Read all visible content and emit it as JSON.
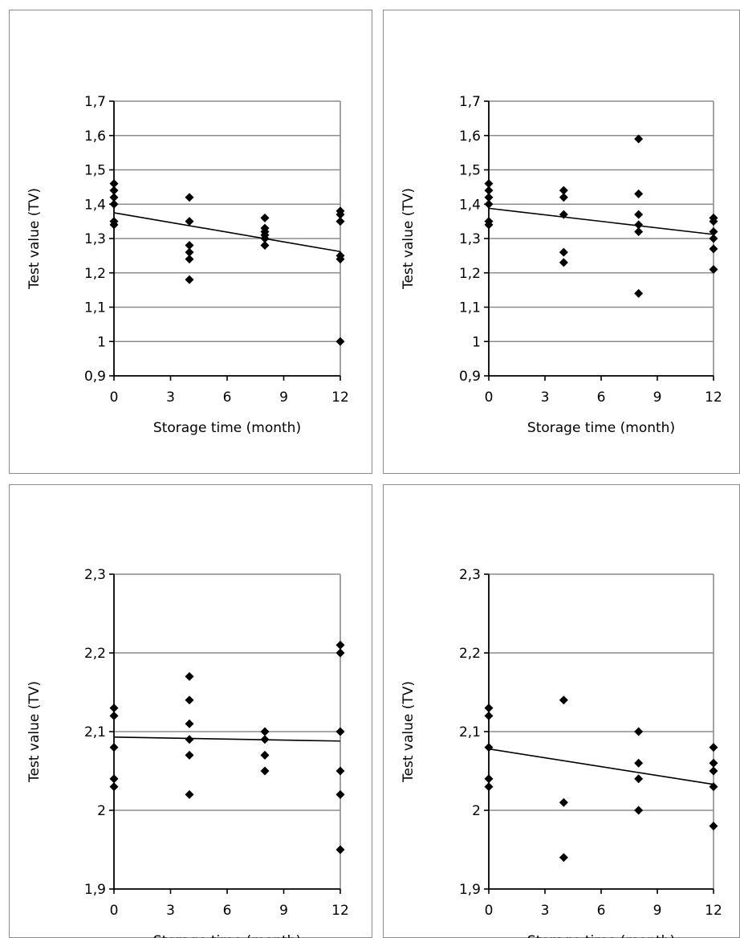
{
  "chart_data": [
    {
      "type": "scatter",
      "xlabel": "Storage time (month)",
      "ylabel": "Test value (TV)",
      "xlim": [
        0,
        12
      ],
      "ylim": [
        0.9,
        1.7
      ],
      "xticks": [
        "0",
        "3",
        "6",
        "9",
        "12"
      ],
      "yticks": [
        "0,9",
        "1",
        "1,1",
        "1,2",
        "1,3",
        "1,4",
        "1,5",
        "1,6",
        "1,7"
      ],
      "grid": "horizontal",
      "series": [
        {
          "points": [
            [
              0,
              1.46
            ],
            [
              0,
              1.44
            ],
            [
              0,
              1.42
            ],
            [
              0,
              1.4
            ],
            [
              0,
              1.35
            ],
            [
              0,
              1.34
            ],
            [
              4,
              1.42
            ],
            [
              4,
              1.35
            ],
            [
              4,
              1.28
            ],
            [
              4,
              1.26
            ],
            [
              4,
              1.24
            ],
            [
              4,
              1.18
            ],
            [
              8,
              1.36
            ],
            [
              8,
              1.33
            ],
            [
              8,
              1.32
            ],
            [
              8,
              1.31
            ],
            [
              8,
              1.3
            ],
            [
              8,
              1.28
            ],
            [
              12,
              1.38
            ],
            [
              12,
              1.37
            ],
            [
              12,
              1.35
            ],
            [
              12,
              1.25
            ],
            [
              12,
              1.24
            ],
            [
              12,
              1.0
            ]
          ]
        }
      ],
      "trendline": {
        "x": [
          0,
          12
        ],
        "y": [
          1.375,
          1.262
        ]
      }
    },
    {
      "type": "scatter",
      "xlabel": "Storage time (month)",
      "ylabel": "Test value (TV)",
      "xlim": [
        0,
        12
      ],
      "ylim": [
        0.9,
        1.7
      ],
      "xticks": [
        "0",
        "3",
        "6",
        "9",
        "12"
      ],
      "yticks": [
        "0,9",
        "1",
        "1,1",
        "1,2",
        "1,3",
        "1,4",
        "1,5",
        "1,6",
        "1,7"
      ],
      "grid": "horizontal",
      "series": [
        {
          "points": [
            [
              0,
              1.46
            ],
            [
              0,
              1.44
            ],
            [
              0,
              1.42
            ],
            [
              0,
              1.4
            ],
            [
              0,
              1.35
            ],
            [
              0,
              1.34
            ],
            [
              4,
              1.44
            ],
            [
              4,
              1.42
            ],
            [
              4,
              1.37
            ],
            [
              4,
              1.26
            ],
            [
              4,
              1.23
            ],
            [
              8,
              1.59
            ],
            [
              8,
              1.43
            ],
            [
              8,
              1.37
            ],
            [
              8,
              1.34
            ],
            [
              8,
              1.32
            ],
            [
              8,
              1.14
            ],
            [
              12,
              1.36
            ],
            [
              12,
              1.35
            ],
            [
              12,
              1.32
            ],
            [
              12,
              1.3
            ],
            [
              12,
              1.27
            ],
            [
              12,
              1.21
            ]
          ]
        }
      ],
      "trendline": {
        "x": [
          0,
          12
        ],
        "y": [
          1.388,
          1.312
        ]
      }
    },
    {
      "type": "scatter",
      "xlabel": "Storage time (month)",
      "ylabel": "Test value (TV)",
      "xlim": [
        0,
        12
      ],
      "ylim": [
        1.9,
        2.3
      ],
      "xticks": [
        "0",
        "3",
        "6",
        "9",
        "12"
      ],
      "yticks": [
        "1,9",
        "2",
        "2,1",
        "2,2",
        "2,3"
      ],
      "grid": "horizontal",
      "series": [
        {
          "points": [
            [
              0,
              2.13
            ],
            [
              0,
              2.12
            ],
            [
              0,
              2.08
            ],
            [
              0,
              2.04
            ],
            [
              0,
              2.03
            ],
            [
              4,
              2.17
            ],
            [
              4,
              2.14
            ],
            [
              4,
              2.11
            ],
            [
              4,
              2.09
            ],
            [
              4,
              2.07
            ],
            [
              4,
              2.02
            ],
            [
              8,
              2.1
            ],
            [
              8,
              2.09
            ],
            [
              8,
              2.07
            ],
            [
              8,
              2.05
            ],
            [
              12,
              2.21
            ],
            [
              12,
              2.2
            ],
            [
              12,
              2.1
            ],
            [
              12,
              2.05
            ],
            [
              12,
              2.02
            ],
            [
              12,
              1.95
            ]
          ]
        }
      ],
      "trendline": {
        "x": [
          0,
          12
        ],
        "y": [
          2.093,
          2.088
        ]
      }
    },
    {
      "type": "scatter",
      "xlabel": "Storage time (month)",
      "ylabel": "Test value (TV)",
      "xlim": [
        0,
        12
      ],
      "ylim": [
        1.9,
        2.3
      ],
      "xticks": [
        "0",
        "3",
        "6",
        "9",
        "12"
      ],
      "yticks": [
        "1,9",
        "2",
        "2,1",
        "2,2",
        "2,3"
      ],
      "grid": "horizontal",
      "series": [
        {
          "points": [
            [
              0,
              2.13
            ],
            [
              0,
              2.12
            ],
            [
              0,
              2.08
            ],
            [
              0,
              2.04
            ],
            [
              0,
              2.03
            ],
            [
              4,
              2.14
            ],
            [
              4,
              2.01
            ],
            [
              4,
              1.94
            ],
            [
              8,
              2.1
            ],
            [
              8,
              2.06
            ],
            [
              8,
              2.04
            ],
            [
              8,
              2.0
            ],
            [
              12,
              2.08
            ],
            [
              12,
              2.06
            ],
            [
              12,
              2.05
            ],
            [
              12,
              2.03
            ],
            [
              12,
              1.98
            ]
          ]
        }
      ],
      "trendline": {
        "x": [
          0,
          12
        ],
        "y": [
          2.078,
          2.033
        ]
      }
    }
  ]
}
